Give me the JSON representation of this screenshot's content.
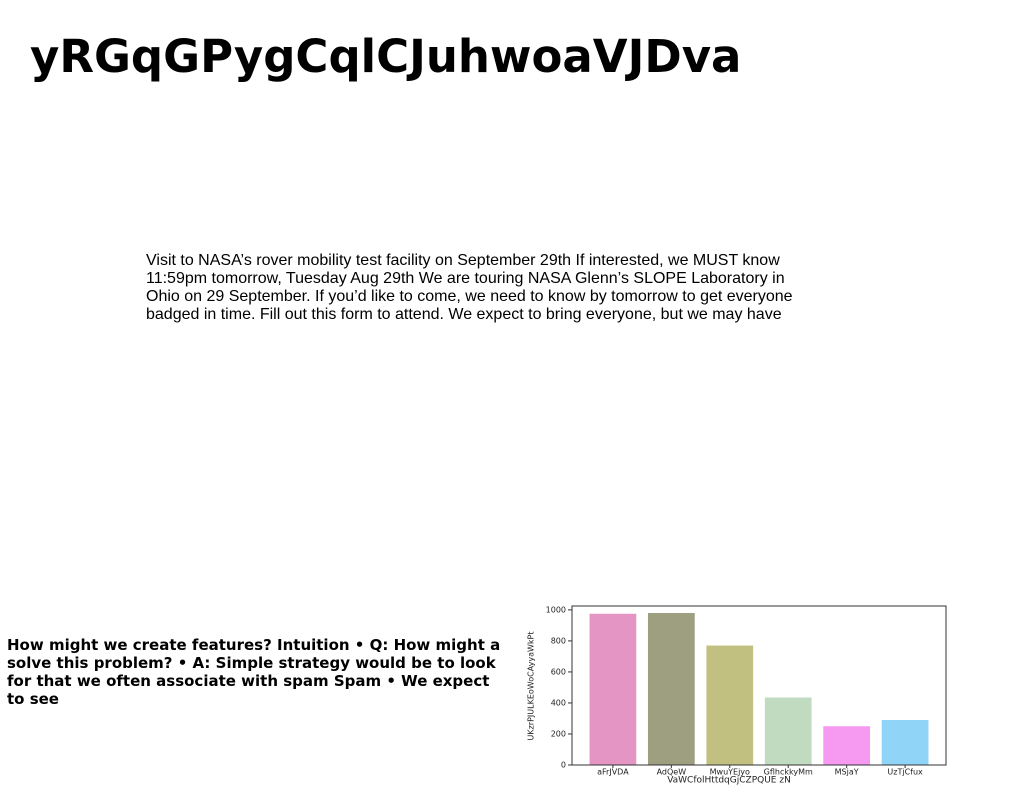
{
  "header": {
    "title": "yRGqGPygCqlCJuhwoaVJDva"
  },
  "paragraph": "Visit to NASA’s rover mobility test facility on September 29th If interested, we MUST know 11:59pm tomorrow, Tuesday Aug 29th We are touring NASA Glenn’s SLOPE Laboratory in Ohio on 29 September. If you’d like to come, we need to know by tomorrow to get everyone badged in time. Fill out this form to attend. We expect to bring everyone, but we may have",
  "side_text": "How might we create features? Intuition • Q: How might a solve this problem? • A: Simple strategy would be to look for that we often associate with spam Spam • We expect to see",
  "chart_data": {
    "type": "bar",
    "categories": [
      "aFrJVDA",
      "AdQeW",
      "MwuYEjyo",
      "GflhckkyMm",
      "MSjaY",
      "UzTjCfux"
    ],
    "values": [
      975,
      980,
      770,
      435,
      250,
      290
    ],
    "colors": [
      "#e595c4",
      "#9e9e80",
      "#c2c080",
      "#c0dbc0",
      "#f59af0",
      "#90d4f8"
    ],
    "xlabel": "VaWCfolHttdqGjCZPQUE zN",
    "ylabel": "UKzrPJULKEoWoCAyyaWkPt",
    "ylim": [
      0,
      1025
    ],
    "yticks": [
      0,
      200,
      400,
      600,
      800,
      1000
    ]
  }
}
